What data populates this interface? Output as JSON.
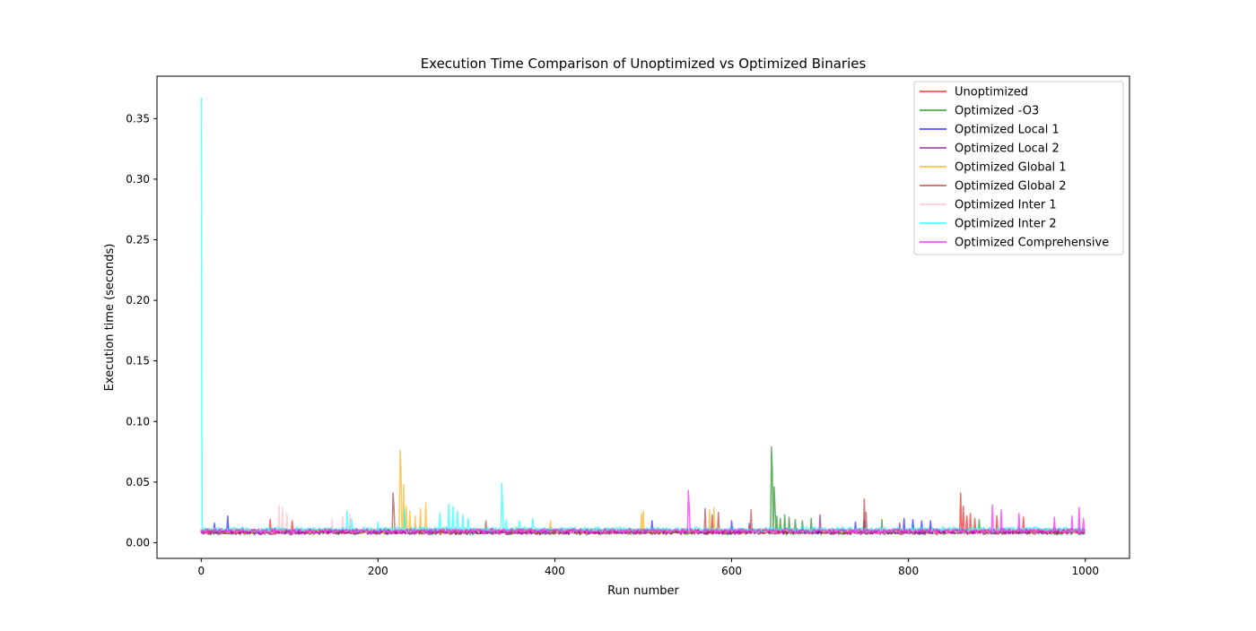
{
  "chart_data": {
    "type": "line",
    "title": "Execution Time Comparison of Unoptimized vs Optimized Binaries",
    "xlabel": "Run number",
    "ylabel": "Execution time (seconds)",
    "xlim": [
      -50,
      1050
    ],
    "ylim": [
      -0.013,
      0.385
    ],
    "xticks": [
      0,
      200,
      400,
      600,
      800,
      1000
    ],
    "yticks": [
      0.0,
      0.05,
      0.1,
      0.15,
      0.2,
      0.25,
      0.3,
      0.35
    ],
    "ytick_labels": [
      "0.00",
      "0.05",
      "0.10",
      "0.15",
      "0.20",
      "0.25",
      "0.30",
      "0.35"
    ],
    "grid": false,
    "legend_position": "top-right",
    "n_runs": 1000,
    "series": [
      {
        "name": "Unoptimized",
        "color": "#ff0000",
        "alpha": 0.6,
        "baseline": 0.0095,
        "noise": 0.0028,
        "spikes": [
          [
            78,
            0.019
          ],
          [
            103,
            0.018
          ],
          [
            859,
            0.041
          ],
          [
            862,
            0.03
          ],
          [
            866,
            0.022
          ],
          [
            870,
            0.024
          ],
          [
            875,
            0.02
          ],
          [
            900,
            0.022
          ],
          [
            930,
            0.021
          ]
        ]
      },
      {
        "name": "Optimized -O3",
        "color": "#008000",
        "alpha": 0.6,
        "baseline": 0.0085,
        "noise": 0.0025,
        "spikes": [
          [
            645,
            0.079
          ],
          [
            646,
            0.06
          ],
          [
            648,
            0.046
          ],
          [
            649,
            0.03
          ],
          [
            651,
            0.022
          ],
          [
            655,
            0.02
          ],
          [
            660,
            0.023
          ],
          [
            665,
            0.021
          ],
          [
            672,
            0.019
          ],
          [
            680,
            0.018
          ],
          [
            690,
            0.02
          ],
          [
            770,
            0.019
          ],
          [
            880,
            0.019
          ]
        ]
      },
      {
        "name": "Optimized Local 1",
        "color": "#0000ff",
        "alpha": 0.6,
        "baseline": 0.0095,
        "noise": 0.0025,
        "spikes": [
          [
            30,
            0.022
          ],
          [
            15,
            0.016
          ],
          [
            510,
            0.018
          ],
          [
            600,
            0.018
          ],
          [
            740,
            0.017
          ],
          [
            795,
            0.02
          ],
          [
            805,
            0.019
          ],
          [
            815,
            0.018
          ],
          [
            825,
            0.018
          ]
        ]
      },
      {
        "name": "Optimized Local 2",
        "color": "#800080",
        "alpha": 0.6,
        "baseline": 0.0082,
        "noise": 0.0022,
        "spikes": [
          [
            620,
            0.016
          ],
          [
            700,
            0.023
          ],
          [
            750,
            0.018
          ],
          [
            790,
            0.016
          ]
        ]
      },
      {
        "name": "Optimized Global 1",
        "color": "#ffa500",
        "alpha": 0.6,
        "baseline": 0.0095,
        "noise": 0.0026,
        "spikes": [
          [
            225,
            0.076
          ],
          [
            226,
            0.06
          ],
          [
            229,
            0.048
          ],
          [
            232,
            0.03
          ],
          [
            236,
            0.026
          ],
          [
            242,
            0.022
          ],
          [
            248,
            0.028
          ],
          [
            254,
            0.033
          ],
          [
            395,
            0.018
          ],
          [
            498,
            0.024
          ],
          [
            500,
            0.026
          ],
          [
            575,
            0.027
          ],
          [
            580,
            0.029
          ]
        ]
      },
      {
        "name": "Optimized Global 2",
        "color": "#a52a2a",
        "alpha": 0.6,
        "baseline": 0.0095,
        "noise": 0.0025,
        "spikes": [
          [
            217,
            0.041
          ],
          [
            218,
            0.03
          ],
          [
            322,
            0.018
          ],
          [
            570,
            0.028
          ],
          [
            578,
            0.023
          ],
          [
            585,
            0.025
          ],
          [
            622,
            0.027
          ],
          [
            750,
            0.036
          ],
          [
            752,
            0.025
          ]
        ]
      },
      {
        "name": "Optimized Inter 1",
        "color": "#ffc0cb",
        "alpha": 0.7,
        "baseline": 0.01,
        "noise": 0.0026,
        "spikes": [
          [
            88,
            0.031
          ],
          [
            92,
            0.029
          ],
          [
            97,
            0.024
          ],
          [
            148,
            0.02
          ],
          [
            160,
            0.022
          ],
          [
            168,
            0.024
          ]
        ]
      },
      {
        "name": "Optimized Inter 2",
        "color": "#00ffff",
        "alpha": 0.6,
        "baseline": 0.011,
        "noise": 0.0028,
        "spikes": [
          [
            0,
            0.367
          ],
          [
            1,
            0.016
          ],
          [
            165,
            0.026
          ],
          [
            170,
            0.02
          ],
          [
            200,
            0.017
          ],
          [
            230,
            0.027
          ],
          [
            270,
            0.025
          ],
          [
            280,
            0.032
          ],
          [
            285,
            0.03
          ],
          [
            290,
            0.026
          ],
          [
            296,
            0.023
          ],
          [
            302,
            0.02
          ],
          [
            340,
            0.049
          ],
          [
            341,
            0.03
          ],
          [
            345,
            0.019
          ],
          [
            360,
            0.018
          ],
          [
            375,
            0.02
          ]
        ]
      },
      {
        "name": "Optimized Comprehensive",
        "color": "#ff00ff",
        "alpha": 0.6,
        "baseline": 0.0095,
        "noise": 0.0028,
        "spikes": [
          [
            551,
            0.043
          ],
          [
            552,
            0.03
          ],
          [
            895,
            0.031
          ],
          [
            905,
            0.027
          ],
          [
            925,
            0.024
          ],
          [
            965,
            0.021
          ],
          [
            985,
            0.022
          ],
          [
            993,
            0.029
          ],
          [
            998,
            0.02
          ]
        ]
      }
    ]
  }
}
